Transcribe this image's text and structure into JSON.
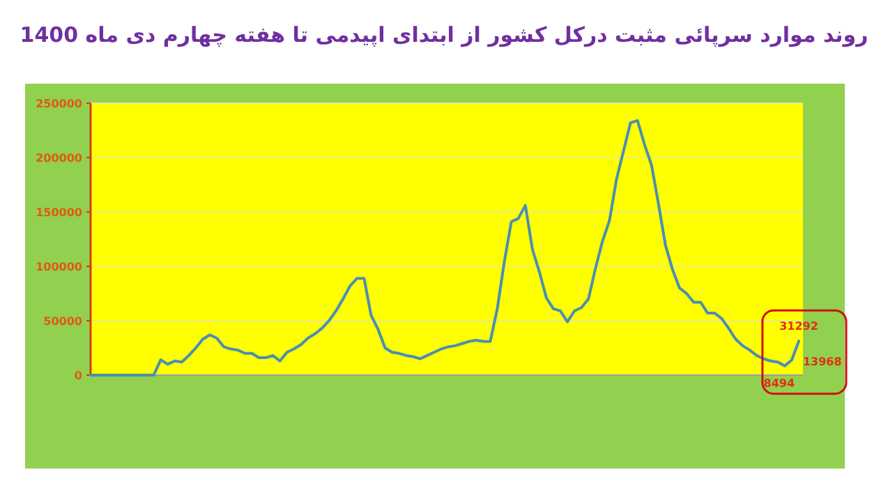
{
  "chart_data": {
    "type": "line",
    "title": "روند موارد سرپائی مثبت  درکل کشور از ابتدای اپیدمی تا هفته چهارم دی ماه 1400",
    "categories": [
      null,
      null,
      null,
      null,
      null,
      null,
      null,
      null,
      null,
      null,
      null,
      null,
      null,
      null,
      null,
      null,
      null,
      null,
      null,
      null,
      null,
      null,
      null,
      null,
      null,
      null,
      null,
      null,
      null,
      null,
      null,
      null,
      null,
      null,
      null,
      null,
      null,
      null,
      null,
      null,
      null,
      null,
      null,
      null,
      null,
      null,
      null,
      null,
      null,
      null,
      null,
      null,
      null,
      null,
      null,
      null,
      null,
      null,
      null,
      null,
      null,
      null,
      null,
      null,
      null,
      null,
      null,
      null,
      null,
      null,
      null,
      null,
      null,
      null,
      null,
      null,
      null,
      null,
      null,
      null,
      null,
      null,
      null,
      null,
      null,
      null,
      null,
      null,
      null,
      null,
      null,
      null,
      null,
      null,
      null,
      null,
      null,
      null,
      null,
      null,
      null,
      null
    ],
    "series": [
      {
        "color": "#4a8fb0",
        "values": [
          0,
          0,
          0,
          0,
          0,
          0,
          0,
          0,
          0,
          0,
          14000,
          10000,
          13000,
          12000,
          18000,
          25000,
          33000,
          37000,
          34000,
          26000,
          24000,
          23000,
          20000,
          20000,
          16000,
          16000,
          18000,
          13000,
          21000,
          24000,
          28000,
          34000,
          38000,
          43000,
          50000,
          59000,
          70000,
          82000,
          89000,
          89000,
          55000,
          42000,
          25000,
          21000,
          20000,
          18000,
          17000,
          15000,
          18000,
          21000,
          24000,
          26000,
          27000,
          29000,
          31000,
          32000,
          31000,
          31000,
          61000,
          104000,
          141000,
          144000,
          156000,
          116000,
          95000,
          71000,
          61000,
          59000,
          49000,
          59000,
          62000,
          70000,
          98000,
          123000,
          142000,
          180000,
          206000,
          232000,
          234000,
          212000,
          193000,
          157000,
          119000,
          97000,
          80000,
          75000,
          67000,
          67000,
          57000,
          57000,
          52000,
          43000,
          33000,
          27000,
          23000,
          18000,
          15000,
          13000,
          12000,
          8494,
          13968,
          31292
        ],
        "value_labels": [
          null,
          null,
          null,
          null,
          null,
          null,
          null,
          null,
          null,
          null,
          null,
          null,
          null,
          null,
          null,
          null,
          null,
          null,
          null,
          null,
          null,
          null,
          null,
          null,
          null,
          null,
          null,
          null,
          null,
          null,
          null,
          null,
          null,
          null,
          null,
          null,
          null,
          null,
          null,
          null,
          null,
          null,
          null,
          null,
          null,
          null,
          null,
          null,
          null,
          null,
          null,
          null,
          null,
          null,
          null,
          null,
          null,
          null,
          null,
          null,
          null,
          null,
          null,
          null,
          null,
          null,
          null,
          null,
          null,
          null,
          null,
          null,
          null,
          null,
          null,
          null,
          null,
          null,
          null,
          null,
          null,
          null,
          null,
          null,
          null,
          null,
          null,
          null,
          null,
          null,
          null,
          null,
          null,
          null,
          null,
          null,
          null,
          null,
          null,
          "8494",
          "13968",
          "31292"
        ]
      }
    ],
    "ylim": [
      0,
      250000
    ],
    "yticks": [
      0,
      50000,
      100000,
      150000,
      200000,
      250000
    ],
    "grid": "y"
  }
}
